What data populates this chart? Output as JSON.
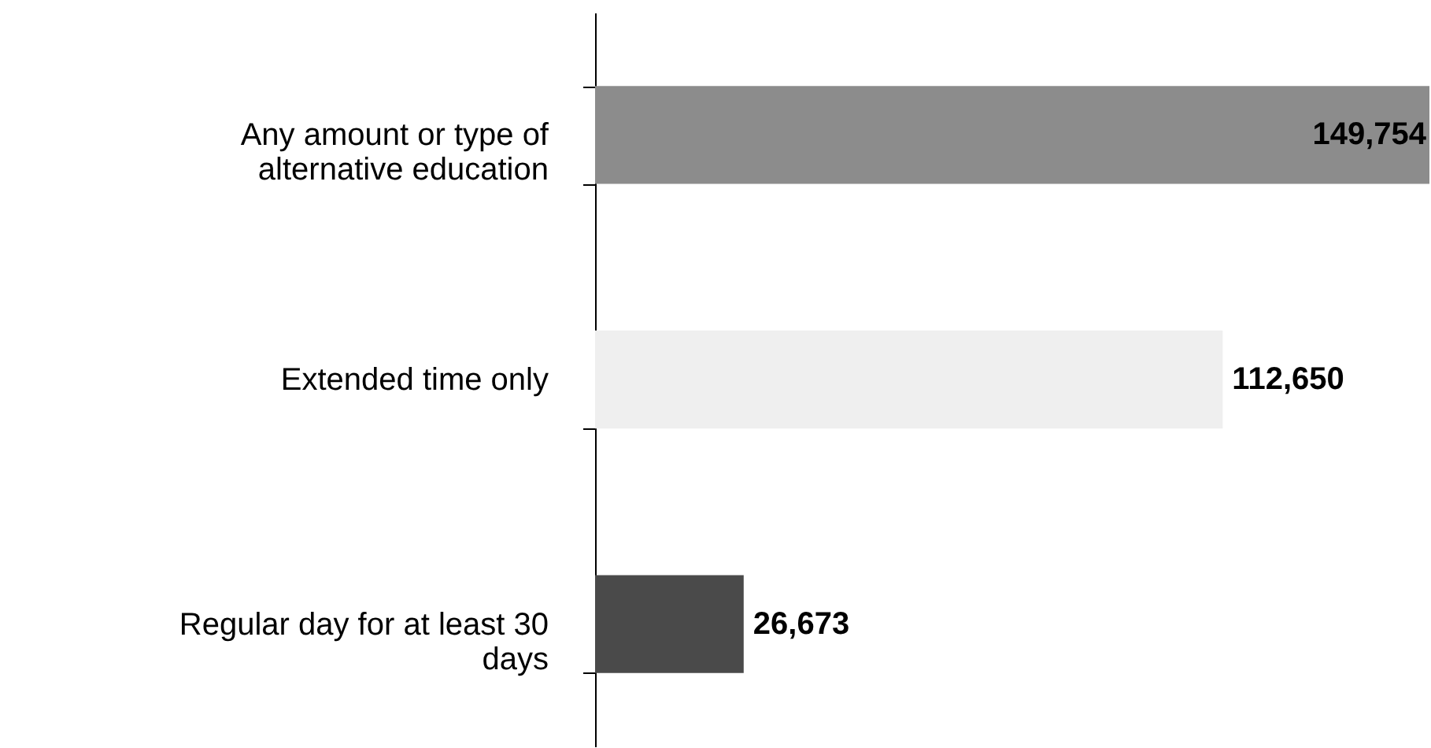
{
  "chart_data": {
    "type": "bar",
    "orientation": "horizontal",
    "categories": [
      "Any amount or type of alternative education",
      "Extended time only",
      "Regular day for at least 30 days"
    ],
    "values": [
      149754,
      112650,
      26673
    ],
    "value_labels": [
      "149,754",
      "112,650",
      "26,673"
    ],
    "colors": [
      "#8c8c8c",
      "#efefef",
      "#4a4a4a"
    ],
    "tick_labels": "y",
    "grid": false
  }
}
